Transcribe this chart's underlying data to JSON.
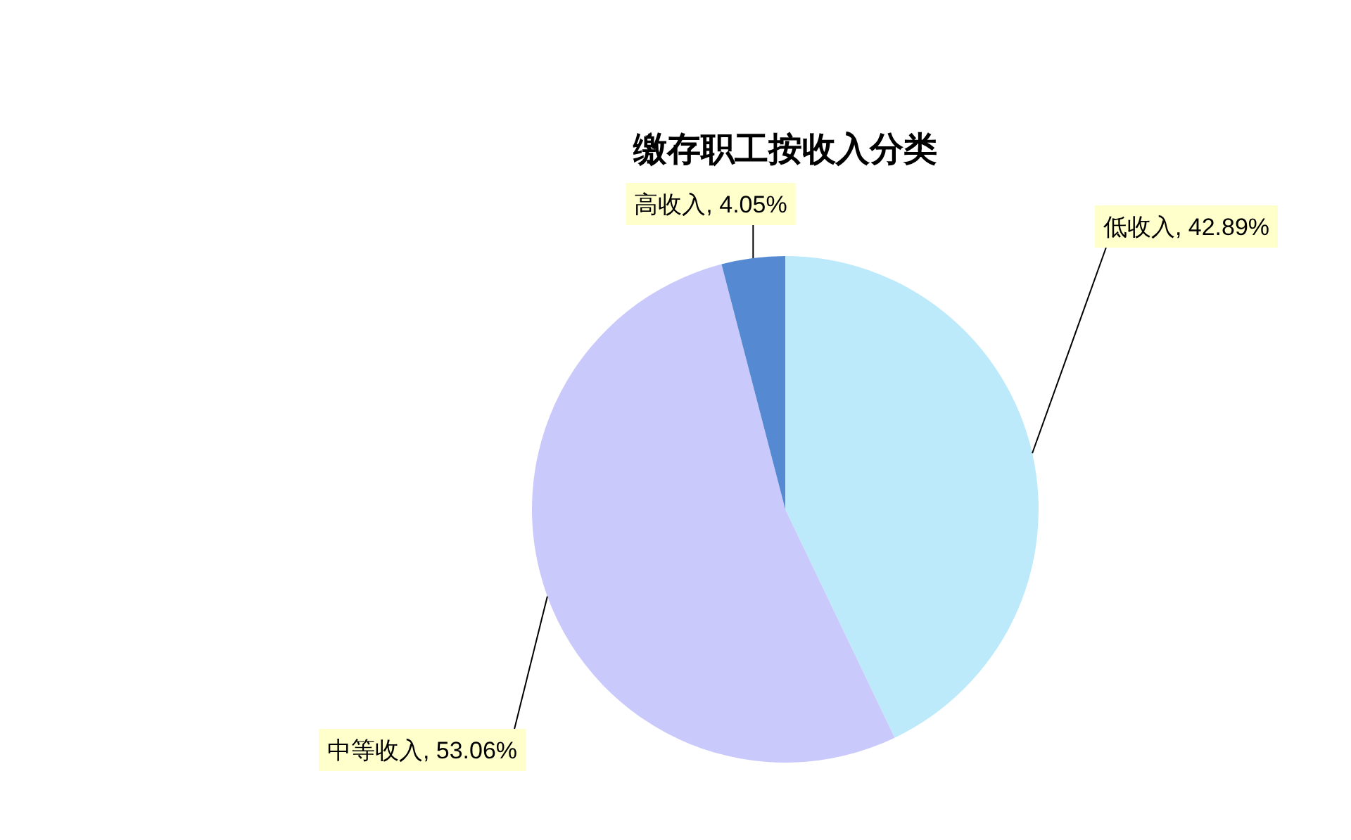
{
  "chart_data": {
    "type": "pie",
    "title": "缴存职工按收入分类",
    "categories": [
      "低收入",
      "中等收入",
      "高收入"
    ],
    "values": [
      42.89,
      53.06,
      4.05
    ],
    "colors": [
      "#bdeafb",
      "#cac9fb",
      "#558ad3"
    ],
    "value_labels": [
      ", 42.89%",
      ", 53.06%",
      ", 4.05%"
    ]
  }
}
